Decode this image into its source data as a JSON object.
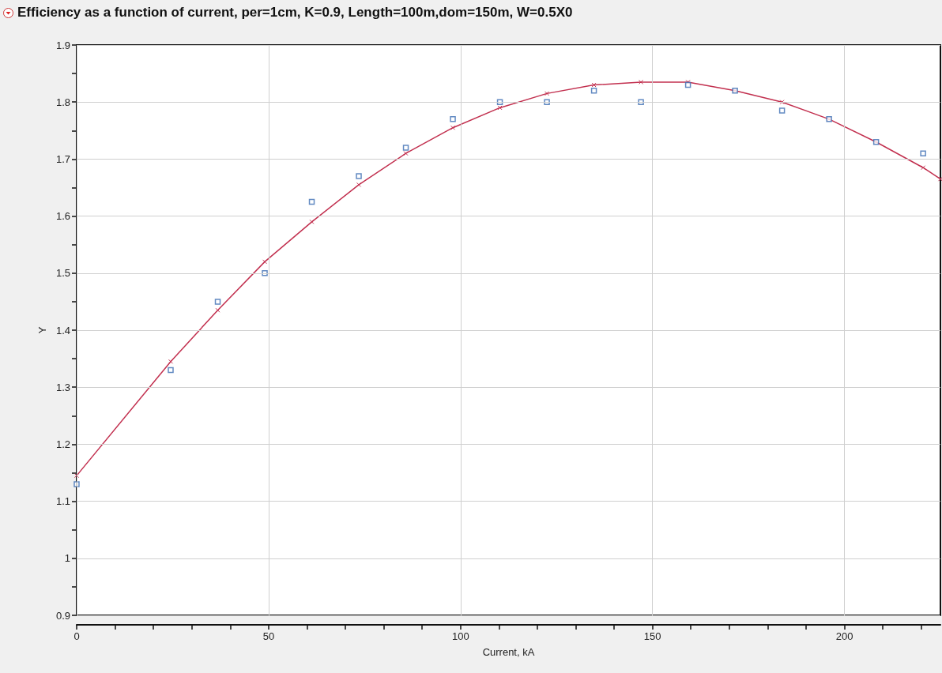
{
  "chart_data": {
    "type": "scatter",
    "title": "Efficiency as a function of current, per=1cm, K=0.9, Length=100m,dom=150m, W=0.5X0",
    "xlabel": "Current, kA",
    "ylabel": "Y",
    "series": [
      {
        "marker": "square",
        "color": "#3b6db3",
        "x": [
          0,
          24.5,
          36.75,
          49,
          61.25,
          73.5,
          85.75,
          98,
          110.25,
          122.5,
          134.75,
          147,
          159.25,
          171.5,
          183.75,
          196,
          208.25,
          220.5
        ],
        "values": [
          1.13,
          1.33,
          1.45,
          1.5,
          1.625,
          1.67,
          1.72,
          1.77,
          1.8,
          1.8,
          1.82,
          1.8,
          1.83,
          1.82,
          1.785,
          1.77,
          1.73,
          1.71
        ]
      },
      {
        "type": "line",
        "marker": "cross",
        "line_style": "solid",
        "color": "#c2304f",
        "x": [
          0,
          24.5,
          36.75,
          49,
          61.25,
          73.5,
          85.75,
          98,
          110.25,
          122.5,
          134.75,
          147,
          159.25,
          171.5,
          183.75,
          196,
          208.25,
          220.5,
          225
        ],
        "values": [
          1.145,
          1.345,
          1.435,
          1.52,
          1.59,
          1.655,
          1.71,
          1.755,
          1.79,
          1.815,
          1.83,
          1.835,
          1.835,
          1.82,
          1.8,
          1.77,
          1.73,
          1.685,
          1.665
        ]
      }
    ],
    "xlim": [
      0,
      225
    ],
    "xticks": [
      0,
      {
        "value": 10,
        "label": null
      },
      {
        "value": 20,
        "label": null
      },
      {
        "value": 30,
        "label": null
      },
      {
        "value": 40,
        "label": null
      },
      50,
      {
        "value": 60,
        "label": null
      },
      {
        "value": 70,
        "label": null
      },
      {
        "value": 80,
        "label": null
      },
      {
        "value": 90,
        "label": null
      },
      100,
      {
        "value": 110,
        "label": null
      },
      {
        "value": 120,
        "label": null
      },
      {
        "value": 130,
        "label": null
      },
      {
        "value": 140,
        "label": null
      },
      150,
      {
        "value": 160,
        "label": null
      },
      {
        "value": 170,
        "label": null
      },
      {
        "value": 180,
        "label": null
      },
      {
        "value": 190,
        "label": null
      },
      200,
      {
        "value": 210,
        "label": null
      },
      {
        "value": 220,
        "label": null
      }
    ],
    "ylim": [
      0.9,
      1.9
    ],
    "yticks": [
      0.9,
      {
        "value": 0.95,
        "label": null
      },
      1,
      {
        "value": 1.05,
        "label": null
      },
      1.1,
      {
        "value": 1.15,
        "label": null
      },
      1.2,
      {
        "value": 1.25,
        "label": null
      },
      1.3,
      {
        "value": 1.35,
        "label": null
      },
      1.4,
      {
        "value": 1.45,
        "label": null
      },
      1.5,
      {
        "value": 1.55,
        "label": null
      },
      1.6,
      {
        "value": 1.65,
        "label": null
      },
      1.7,
      {
        "value": 1.75,
        "label": null
      },
      1.8,
      {
        "value": 1.85,
        "label": null
      },
      1.9
    ],
    "grid": true
  }
}
